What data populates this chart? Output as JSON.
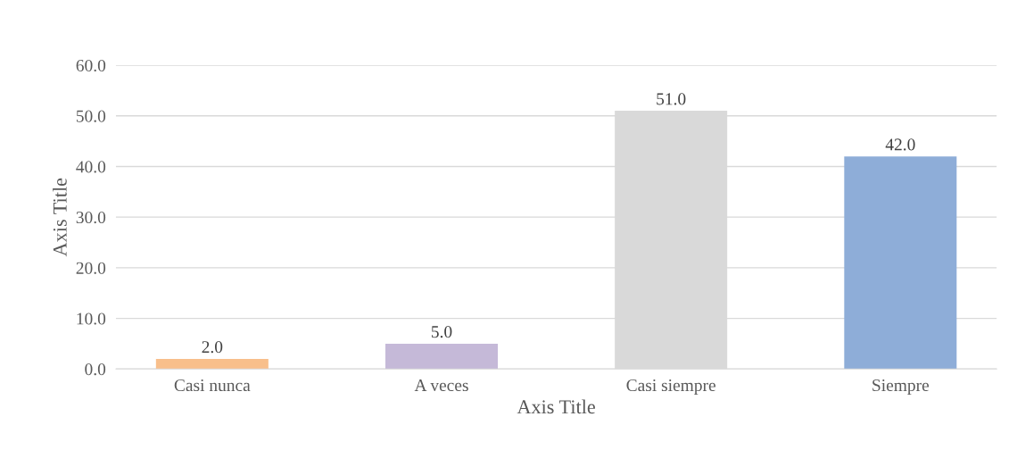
{
  "chart_data": {
    "type": "bar",
    "xlabel": "Axis Title",
    "ylabel": "Axis Title",
    "categories": [
      "Casi nunca",
      "A veces",
      "Casi siempre",
      "Siempre"
    ],
    "values": [
      2.0,
      5.0,
      51.0,
      42.0
    ],
    "colors": [
      "#f8bf8b",
      "#c5b9d8",
      "#d9d9d9",
      "#8eadd8"
    ],
    "ylim": [
      0,
      60
    ],
    "yticks": [
      {
        "value": 0,
        "label": "0.0"
      },
      {
        "value": 10,
        "label": "10.0"
      },
      {
        "value": 20,
        "label": "20.0"
      },
      {
        "value": 30,
        "label": "30.0"
      },
      {
        "value": 40,
        "label": "40.0"
      },
      {
        "value": 50,
        "label": "50.0"
      },
      {
        "value": 60,
        "label": "60.0"
      }
    ],
    "value_labels": [
      "2.0",
      "5.0",
      "51.0",
      "42.0"
    ],
    "grid": "y",
    "legend": false
  }
}
